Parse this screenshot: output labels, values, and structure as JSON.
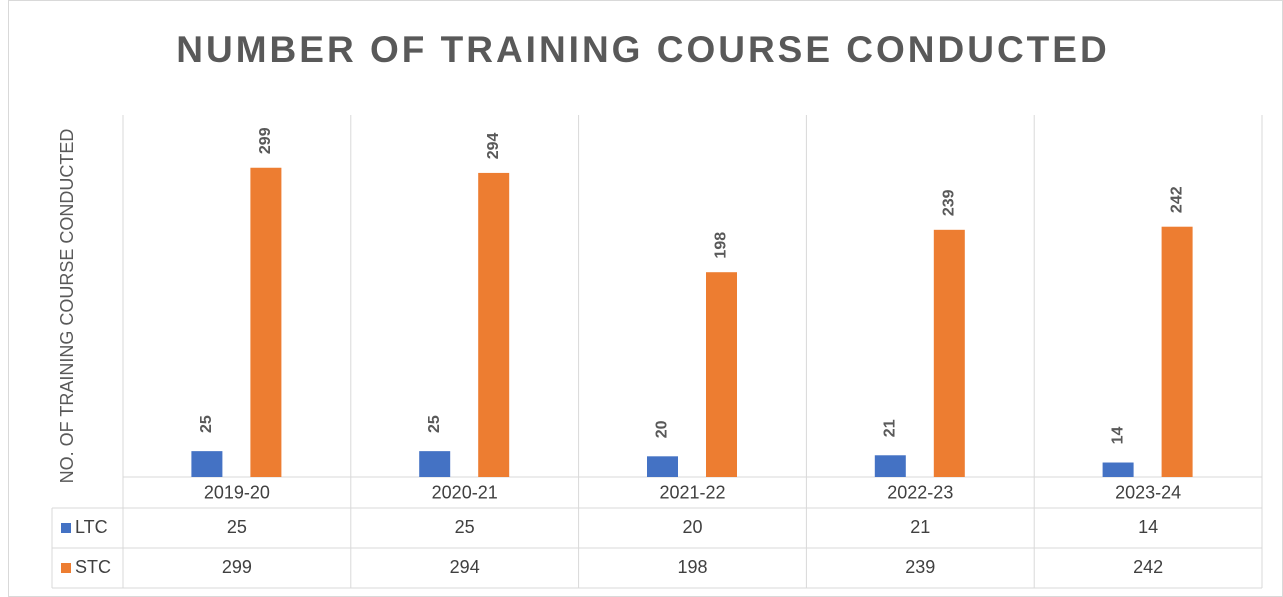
{
  "chart_data": {
    "type": "bar",
    "title": "NUMBER OF TRAINING COURSE CONDUCTED",
    "y_axis_label": "NO. OF TRAINING COURSE CONDUCTED",
    "categories": [
      "2019-20",
      "2020-21",
      "2021-22",
      "2022-23",
      "2023-24"
    ],
    "series": [
      {
        "name": "LTC",
        "color": "#4472c4",
        "values": [
          25,
          25,
          20,
          21,
          14
        ]
      },
      {
        "name": "STC",
        "color": "#ed7d31",
        "values": [
          299,
          294,
          198,
          239,
          242
        ]
      }
    ],
    "ylim": [
      0,
      350
    ],
    "data_table": true
  }
}
